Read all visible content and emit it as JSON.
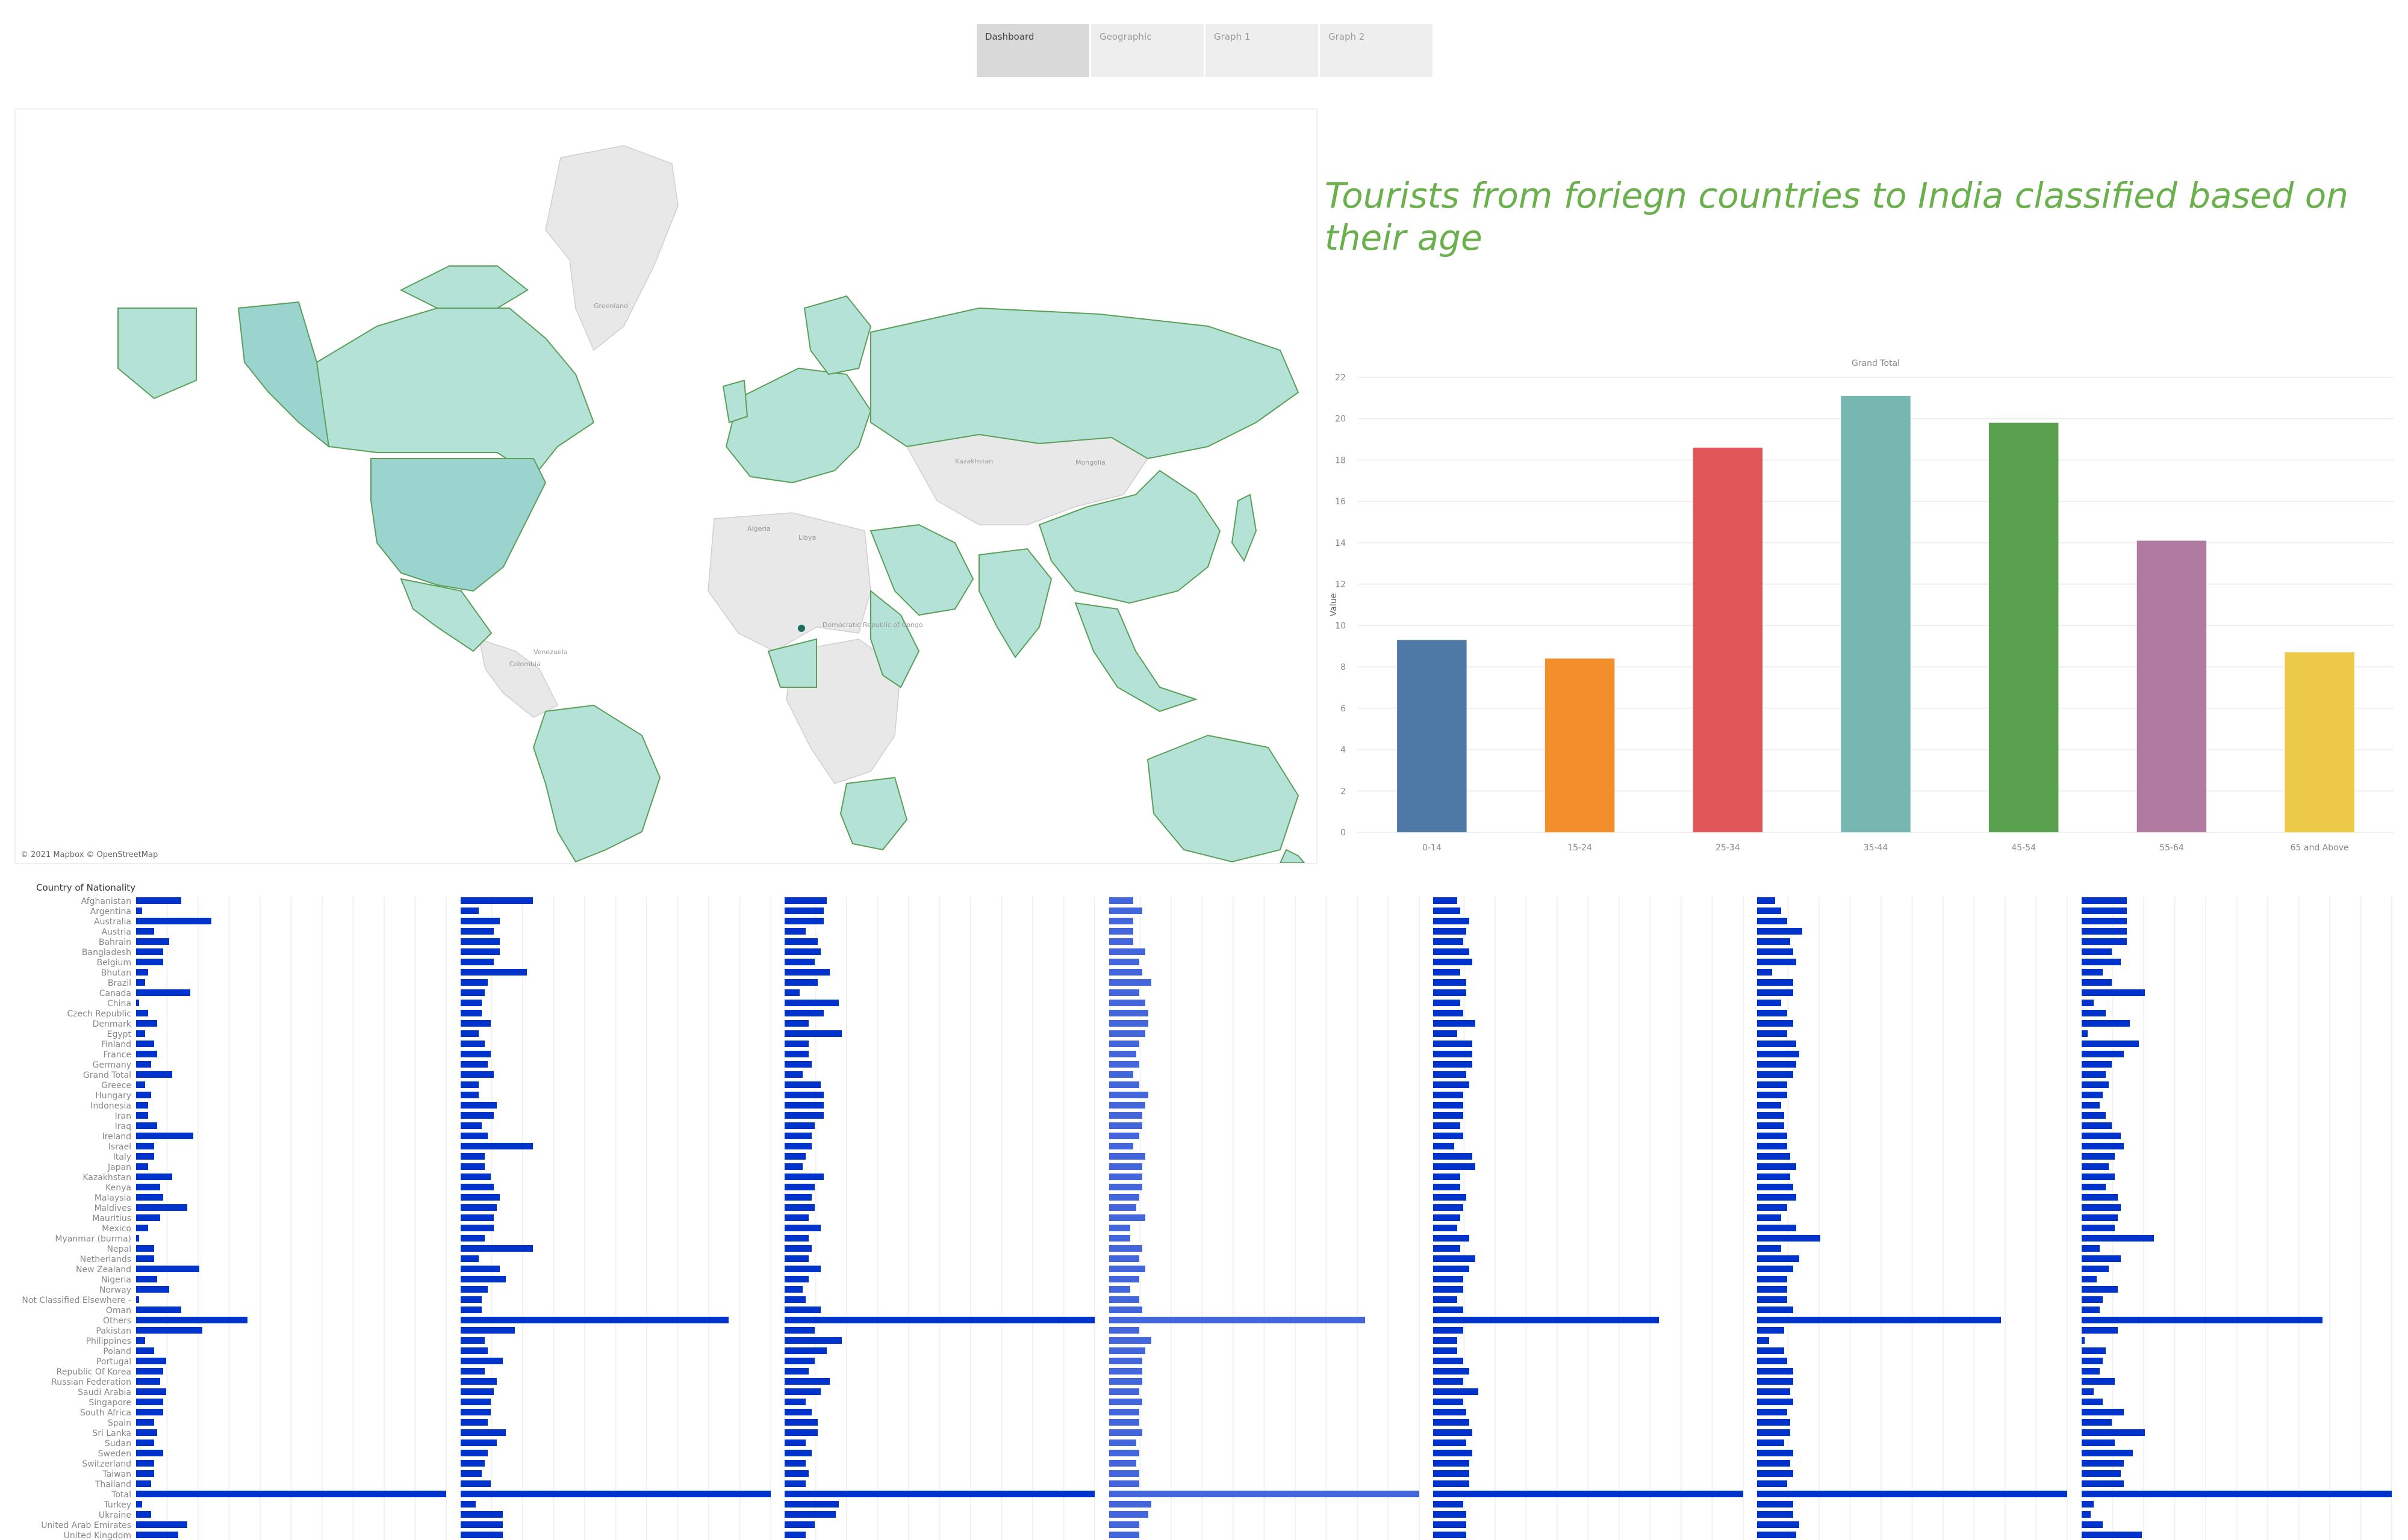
{
  "tabs": [
    {
      "label": "Dashboard",
      "active": true
    },
    {
      "label": "Geographic",
      "active": false
    },
    {
      "label": "Graph 1",
      "active": false
    },
    {
      "label": "Graph 2",
      "active": false
    }
  ],
  "map": {
    "attribution": "© 2021 Mapbox © OpenStreetMap",
    "labels": [
      "Greenland",
      "Kazakhstan",
      "Mongolia",
      "Algeria",
      "Libya",
      "Colombia",
      "Venezuela",
      "Democratic Republic of Congo"
    ],
    "colors": {
      "highlight": "#b5e2d6",
      "strong": "#9bd3cf",
      "outline": "#5aa05a",
      "land": "#e6e6e6",
      "marker": "#1e6b5f"
    }
  },
  "title": "Tourists from foriegn countries to India classified based on their age",
  "chart_data": [
    {
      "type": "bar",
      "title": "Grand Total",
      "ylabel": "Value",
      "xlabel": "",
      "categories": [
        "0-14",
        "15-24",
        "25-34",
        "35-44",
        "45-54",
        "55-64",
        "65 and Above"
      ],
      "values": [
        9.3,
        8.4,
        18.6,
        21.1,
        19.8,
        14.1,
        8.7
      ],
      "colors": [
        "#4e79a7",
        "#f28e2b",
        "#e15759",
        "#76b7b2",
        "#59a14f",
        "#b07aa1",
        "#edc948"
      ],
      "ylim": [
        0,
        22
      ],
      "yticks": [
        0,
        2,
        4,
        6,
        8,
        10,
        12,
        14,
        16,
        18,
        20,
        22
      ],
      "grid": true
    },
    {
      "type": "bar",
      "orientation": "horizontal",
      "header": "Country of Nationality",
      "categories": [
        "Afghanistan",
        "Argentina",
        "Australia",
        "Austria",
        "Bahrain",
        "Bangladesh",
        "Belgium",
        "Bhutan",
        "Brazil",
        "Canada",
        "China",
        "Czech Republic",
        "Denmark",
        "Egypt",
        "Finland",
        "France",
        "Germany",
        "Grand Total",
        "Greece",
        "Hungary",
        "Indonesia",
        "Iran",
        "Iraq",
        "Ireland",
        "Israel",
        "Italy",
        "Japan",
        "Kazakhstan",
        "Kenya",
        "Malaysia",
        "Maldives",
        "Mauritius",
        "Mexico",
        "Myanmar (burma)",
        "Nepal",
        "Netherlands",
        "New Zealand",
        "Nigeria",
        "Norway",
        "Not Classified Elsewhere -",
        "Oman",
        "Others",
        "Pakistan",
        "Philippines",
        "Poland",
        "Portugal",
        "Republic Of Korea",
        "Russian Federation",
        "Saudi Arabia",
        "Singapore",
        "South Africa",
        "Spain",
        "Sri Lanka",
        "Sudan",
        "Sweden",
        "Switzerland",
        "Taiwan",
        "Thailand",
        "Total",
        "Turkey",
        "Ukraine",
        "United Arab Emirates",
        "United Kingdom"
      ],
      "bar_colors": [
        "#0033cc",
        "#0033cc",
        "#0033cc",
        "#4466dd",
        "#0033cc",
        "#0033cc",
        "#0033cc"
      ],
      "series": [
        {
          "values": [
            15,
            2,
            25,
            6,
            11,
            9,
            9,
            4,
            3,
            18,
            1,
            4,
            7,
            3,
            6,
            7,
            5,
            12,
            3,
            5,
            4,
            4,
            7,
            19,
            6,
            6,
            4,
            12,
            8,
            9,
            17,
            8,
            4,
            1,
            6,
            6,
            21,
            7,
            11,
            1,
            15,
            37,
            22,
            3,
            6,
            10,
            9,
            8,
            10,
            9,
            9,
            6,
            7,
            6,
            9,
            6,
            6,
            5,
            103,
            2,
            5,
            17,
            14
          ]
        },
        {
          "values": [
            24,
            6,
            13,
            11,
            13,
            13,
            11,
            22,
            9,
            8,
            7,
            7,
            10,
            6,
            8,
            10,
            9,
            11,
            6,
            6,
            12,
            11,
            7,
            9,
            24,
            8,
            8,
            10,
            11,
            13,
            12,
            11,
            11,
            8,
            24,
            6,
            13,
            15,
            9,
            7,
            7,
            89,
            18,
            8,
            9,
            14,
            8,
            12,
            11,
            10,
            10,
            9,
            15,
            12,
            9,
            8,
            7,
            10,
            103,
            5,
            14,
            14,
            14
          ]
        },
        {
          "values": [
            14,
            13,
            13,
            7,
            11,
            12,
            10,
            15,
            11,
            5,
            18,
            13,
            8,
            19,
            8,
            8,
            9,
            6,
            12,
            13,
            13,
            13,
            10,
            9,
            9,
            7,
            6,
            13,
            10,
            9,
            10,
            8,
            12,
            8,
            9,
            8,
            12,
            8,
            6,
            7,
            12,
            103,
            10,
            19,
            14,
            10,
            8,
            15,
            12,
            7,
            9,
            11,
            11,
            7,
            9,
            7,
            8,
            7,
            103,
            18,
            17,
            10,
            7
          ]
        },
        {
          "values": [
            8,
            11,
            8,
            8,
            8,
            12,
            10,
            11,
            14,
            10,
            12,
            13,
            13,
            12,
            10,
            9,
            10,
            8,
            10,
            13,
            12,
            11,
            11,
            10,
            8,
            12,
            11,
            11,
            11,
            10,
            9,
            12,
            7,
            7,
            11,
            10,
            12,
            10,
            7,
            10,
            11,
            85,
            10,
            14,
            12,
            11,
            11,
            11,
            10,
            11,
            10,
            10,
            11,
            9,
            10,
            9,
            10,
            10,
            103,
            14,
            13,
            10,
            10
          ]
        },
        {
          "values": [
            8,
            9,
            12,
            11,
            10,
            12,
            13,
            9,
            11,
            11,
            9,
            10,
            14,
            8,
            13,
            13,
            13,
            11,
            12,
            10,
            10,
            10,
            9,
            10,
            7,
            13,
            14,
            9,
            9,
            11,
            10,
            9,
            8,
            12,
            9,
            14,
            12,
            10,
            10,
            8,
            10,
            75,
            10,
            8,
            8,
            10,
            12,
            10,
            15,
            10,
            11,
            12,
            13,
            11,
            13,
            12,
            12,
            12,
            103,
            10,
            11,
            11,
            11
          ]
        },
        {
          "values": [
            6,
            8,
            10,
            15,
            11,
            12,
            13,
            5,
            12,
            12,
            8,
            10,
            12,
            10,
            13,
            14,
            13,
            12,
            10,
            10,
            8,
            9,
            9,
            10,
            10,
            11,
            13,
            11,
            12,
            13,
            10,
            8,
            13,
            21,
            8,
            14,
            12,
            10,
            10,
            10,
            12,
            81,
            9,
            4,
            9,
            10,
            12,
            12,
            11,
            12,
            10,
            11,
            11,
            9,
            12,
            11,
            12,
            10,
            103,
            12,
            12,
            14,
            13
          ]
        },
        {
          "values": [
            15,
            15,
            15,
            15,
            15,
            10,
            13,
            7,
            10,
            21,
            4,
            8,
            16,
            2,
            19,
            14,
            10,
            8,
            9,
            7,
            6,
            8,
            10,
            13,
            14,
            11,
            9,
            11,
            8,
            12,
            13,
            12,
            11,
            24,
            6,
            13,
            9,
            5,
            12,
            7,
            6,
            80,
            12,
            1,
            8,
            7,
            6,
            11,
            4,
            7,
            14,
            10,
            21,
            11,
            17,
            14,
            13,
            14,
            103,
            4,
            3,
            7,
            20
          ]
        }
      ]
    }
  ]
}
